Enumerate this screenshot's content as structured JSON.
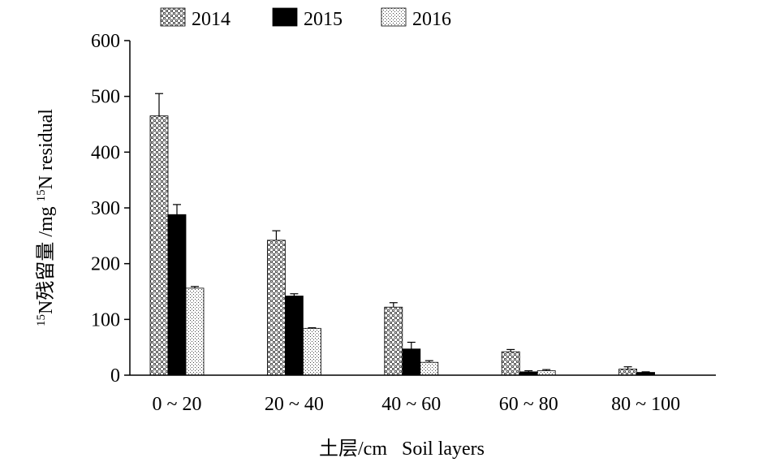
{
  "chart_data": {
    "type": "bar",
    "categories": [
      "0 ~ 20",
      "20 ~ 40",
      "40 ~ 60",
      "60 ~ 80",
      "80 ~ 100"
    ],
    "series": [
      {
        "name": "2014",
        "values": [
          465,
          242,
          122,
          42,
          11
        ],
        "errors": [
          40,
          17,
          8,
          4,
          4
        ],
        "pattern": "pattern-2014"
      },
      {
        "name": "2015",
        "values": [
          288,
          142,
          47,
          6,
          5
        ],
        "errors": [
          18,
          4,
          12,
          2,
          1
        ],
        "pattern": "solid-black"
      },
      {
        "name": "2016",
        "values": [
          156,
          84,
          23,
          8,
          0
        ],
        "errors": [
          3,
          1,
          3,
          2,
          0
        ],
        "pattern": "pattern-2016"
      }
    ],
    "ylim": [
      0,
      600
    ],
    "yticks": [
      0,
      100,
      200,
      300,
      400,
      500,
      600
    ],
    "ylabel": "15N残留量 /mg 15N residual",
    "ylabel_parts": {
      "sup1": "15",
      "main1": "N残留量 /mg ",
      "sup2": "15",
      "main2": "N residual"
    },
    "xlabel": "土层/cm   Soil layers",
    "legend": "top",
    "grid": false
  }
}
